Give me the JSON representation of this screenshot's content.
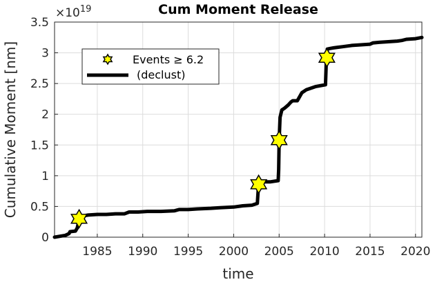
{
  "chart_data": {
    "type": "line",
    "title": "Cum Moment Release",
    "xlabel": "time",
    "ylabel": "Cumulative Moment [nm]",
    "y_multiplier_label": "×10",
    "y_multiplier_exponent": "19",
    "xlim": [
      1980.3,
      2020.7
    ],
    "ylim": [
      0,
      3.5
    ],
    "xticks": [
      1985,
      1990,
      1995,
      2000,
      2005,
      2010,
      2015,
      2020
    ],
    "yticks": [
      0,
      0.5,
      1,
      1.5,
      2,
      2.5,
      3,
      3.5
    ],
    "grid": true,
    "legend_placement": "top-left",
    "series": [
      {
        "name": "(declust)",
        "color": "#000000",
        "x": [
          1980.3,
          1981.5,
          1981.9,
          1982.0,
          1982.6,
          1982.8,
          1982.9,
          1983.0,
          1983.2,
          1984.0,
          1985.0,
          1986.0,
          1987.0,
          1988.0,
          1988.5,
          1989.5,
          1990.5,
          1992.0,
          1993.5,
          1994.0,
          1995.0,
          1996.0,
          1997.5,
          1998.5,
          2000.0,
          2001.0,
          2002.0,
          2002.6,
          2002.7,
          2002.85,
          2003.0,
          2004.0,
          2004.9,
          2004.95,
          2005.0,
          2005.1,
          2005.3,
          2005.6,
          2006.0,
          2006.3,
          2006.5,
          2007.0,
          2007.5,
          2008.0,
          2009.0,
          2010.1,
          2010.2,
          2010.3,
          2010.6,
          2011.0,
          2011.5,
          2012.0,
          2013.0,
          2014.0,
          2015.0,
          2015.3,
          2016.0,
          2017.0,
          2018.0,
          2018.5,
          2019.0,
          2020.0,
          2020.7
        ],
        "values": [
          0.0,
          0.03,
          0.06,
          0.09,
          0.1,
          0.15,
          0.22,
          0.3,
          0.34,
          0.36,
          0.37,
          0.37,
          0.38,
          0.38,
          0.41,
          0.41,
          0.42,
          0.42,
          0.43,
          0.45,
          0.45,
          0.46,
          0.47,
          0.48,
          0.49,
          0.51,
          0.52,
          0.55,
          0.78,
          0.86,
          0.9,
          0.9,
          0.92,
          1.1,
          1.58,
          1.95,
          2.07,
          2.1,
          2.15,
          2.2,
          2.22,
          2.22,
          2.35,
          2.4,
          2.45,
          2.48,
          2.9,
          3.06,
          3.07,
          3.08,
          3.09,
          3.1,
          3.12,
          3.13,
          3.14,
          3.16,
          3.17,
          3.18,
          3.19,
          3.2,
          3.22,
          3.23,
          3.25
        ]
      },
      {
        "name": "Events ≥ 6.2",
        "color": "#ffff00",
        "marker": "hexagram",
        "x": [
          1983.0,
          2002.75,
          2005.0,
          2010.25
        ],
        "values": [
          0.3,
          0.86,
          1.58,
          2.92
        ]
      }
    ]
  }
}
